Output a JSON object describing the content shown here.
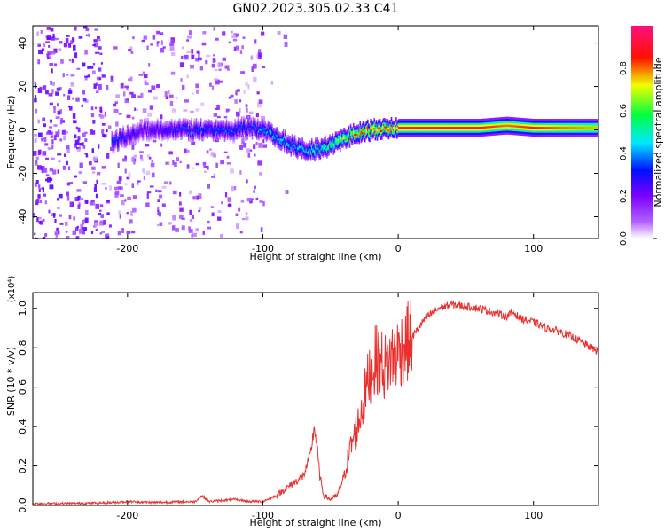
{
  "title": "GN02.2023.305.02.33.C41",
  "chart_data": [
    {
      "type": "heatmap",
      "xlabel": "Height of straight line (km)",
      "ylabel": "Frequency (Hz)",
      "xlim": [
        -270,
        148
      ],
      "ylim": [
        -50,
        48
      ],
      "x_ticks": [
        -200,
        -100,
        0,
        100
      ],
      "y_ticks": [
        -40,
        -20,
        0,
        20,
        40
      ],
      "colorbar": {
        "label": "Normalized spectral amplitude",
        "range": [
          0,
          1
        ],
        "ticks": [
          0.0,
          0.2,
          0.4,
          0.6,
          0.8
        ],
        "colormap": [
          "#ffffff",
          "#7b00ff",
          "#0000ff",
          "#00ffff",
          "#00ff00",
          "#ffff00",
          "#ff0000",
          "#ff0080"
        ]
      },
      "ridge": {
        "x": [
          -210,
          -190,
          -170,
          -150,
          -130,
          -110,
          -100,
          -90,
          -80,
          -70,
          -60,
          -50,
          -40,
          -30,
          -20,
          -10,
          0,
          20,
          40,
          60,
          80,
          100,
          120,
          148
        ],
        "frequency": [
          -5,
          0,
          0,
          0,
          0,
          1,
          0,
          -3,
          -7,
          -9,
          -9,
          -7,
          -4,
          -1,
          0,
          0,
          1,
          1,
          1,
          1,
          2,
          1,
          1,
          1
        ],
        "amplitude": [
          0.35,
          0.25,
          0.3,
          0.35,
          0.35,
          0.35,
          0.4,
          0.45,
          0.45,
          0.45,
          0.5,
          0.6,
          0.7,
          0.8,
          0.85,
          0.85,
          0.85,
          0.85,
          0.85,
          0.85,
          0.8,
          0.85,
          0.8,
          0.75
        ]
      }
    },
    {
      "type": "line",
      "xlabel": "Height of straight line (km)",
      "ylabel": "SNR (10 * v/v)",
      "scale_note": "(x10⁴)",
      "xlim": [
        -270,
        148
      ],
      "ylim": [
        0,
        1.08
      ],
      "x_ticks": [
        -200,
        -100,
        0,
        100
      ],
      "y_ticks": [
        0.0,
        0.2,
        0.4,
        0.6,
        0.8,
        1.0
      ],
      "series": [
        {
          "color": "#e8302e",
          "x": [
            -270,
            -240,
            -210,
            -200,
            -180,
            -150,
            -145,
            -140,
            -120,
            -110,
            -100,
            -90,
            -80,
            -70,
            -65,
            -62,
            -60,
            -58,
            -55,
            -50,
            -45,
            -40,
            -35,
            -30,
            -25,
            -20,
            -15,
            -10,
            -5,
            0,
            10,
            20,
            30,
            40,
            50,
            60,
            70,
            80,
            85,
            90,
            100,
            110,
            120,
            130,
            140,
            148
          ],
          "y": [
            0.01,
            0.01,
            0.015,
            0.02,
            0.015,
            0.02,
            0.05,
            0.02,
            0.03,
            0.02,
            0.02,
            0.05,
            0.1,
            0.15,
            0.25,
            0.4,
            0.3,
            0.15,
            0.05,
            0.03,
            0.05,
            0.15,
            0.3,
            0.4,
            0.55,
            0.7,
            0.75,
            0.7,
            0.75,
            0.78,
            0.85,
            0.95,
            1.0,
            1.02,
            1.01,
            1.0,
            0.98,
            0.96,
            0.98,
            0.95,
            0.93,
            0.9,
            0.88,
            0.85,
            0.81,
            0.78
          ]
        }
      ]
    }
  ]
}
